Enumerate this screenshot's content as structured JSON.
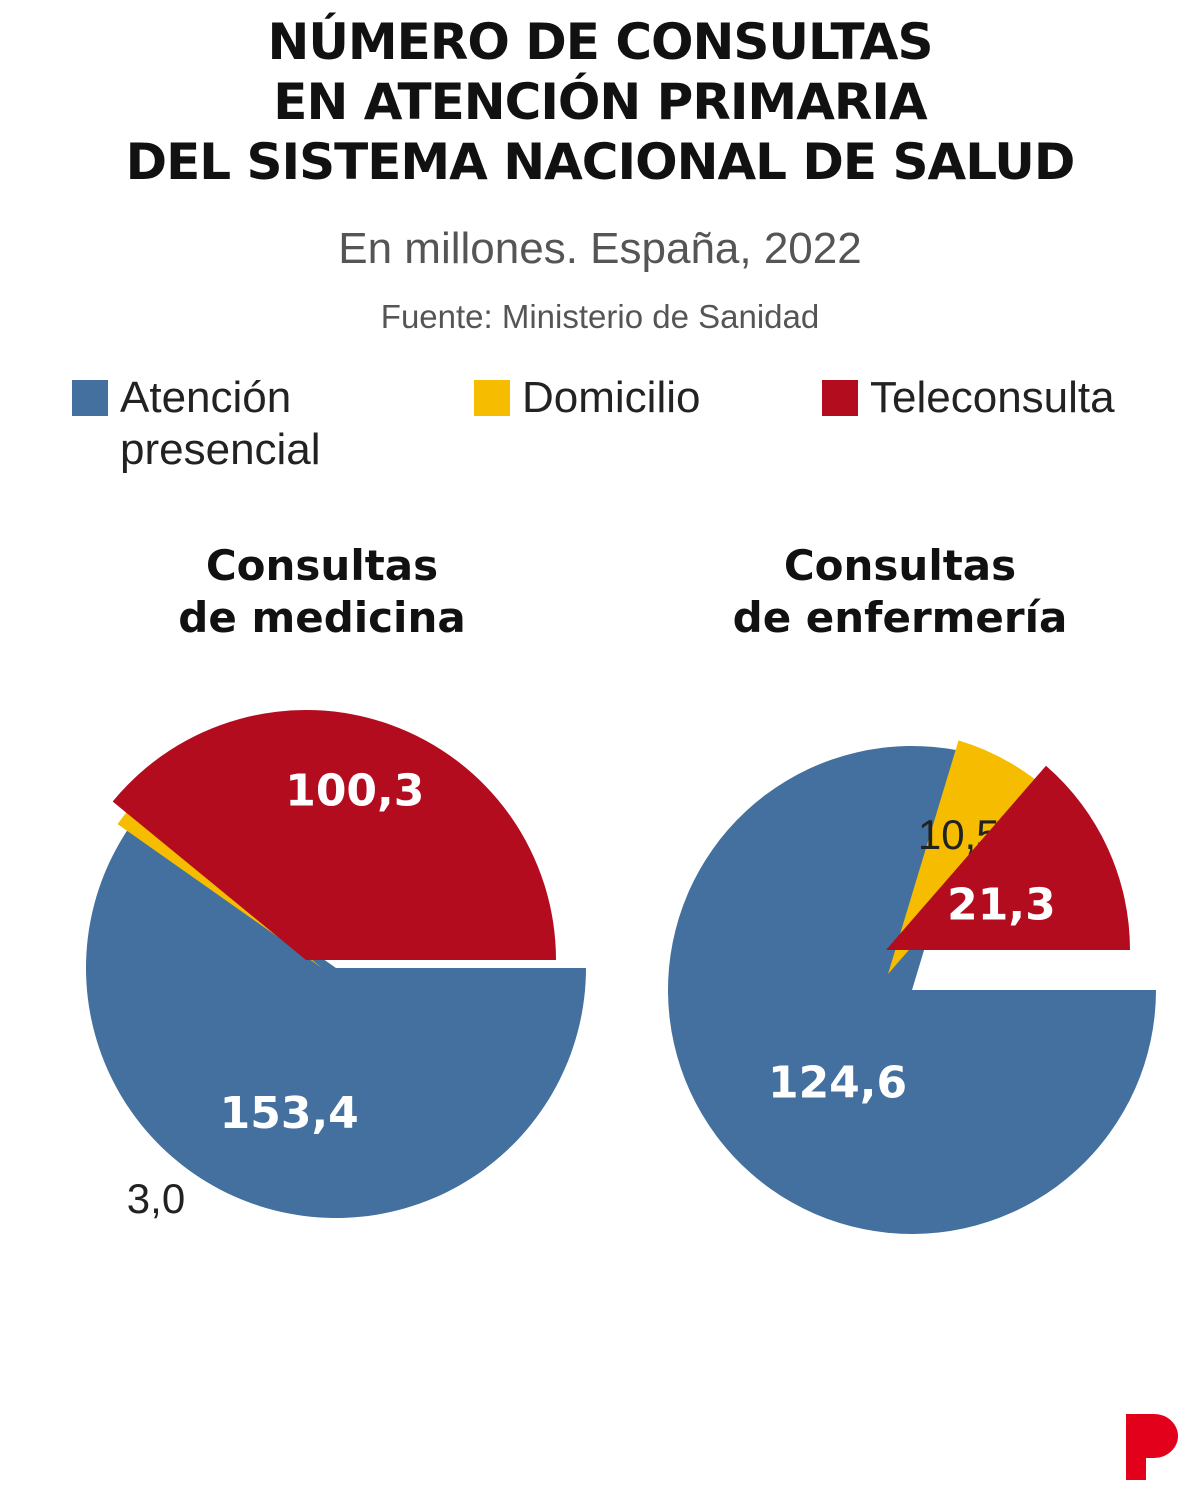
{
  "header": {
    "title_lines": [
      "NÚMERO DE CONSULTAS",
      "EN ATENCIÓN PRIMARIA",
      "DEL SISTEMA NACIONAL DE SALUD"
    ],
    "subtitle": "En millones. España, 2022",
    "source": "Fuente: Ministerio de Sanidad"
  },
  "legend": [
    {
      "lines": [
        "Atención",
        "presencial"
      ],
      "color": "#43709e"
    },
    {
      "lines": [
        "Domicilio"
      ],
      "color": "#f6bd00"
    },
    {
      "lines": [
        "Teleconsulta"
      ],
      "color": "#b40c1f"
    }
  ],
  "chart_data": [
    {
      "type": "pie",
      "title_lines": [
        "Consultas",
        "de medicina"
      ],
      "slices": [
        {
          "category": "Atención presencial",
          "value": 153.4,
          "label": "153,4",
          "color": "#43709e"
        },
        {
          "category": "Domicilio",
          "value": 3.0,
          "label": "3,0",
          "color": "#f6bd00"
        },
        {
          "category": "Teleconsulta",
          "value": 100.3,
          "label": "100,3",
          "color": "#b40c1f"
        }
      ]
    },
    {
      "type": "pie",
      "title_lines": [
        "Consultas",
        "de enfermería"
      ],
      "slices": [
        {
          "category": "Atención presencial",
          "value": 124.6,
          "label": "124,6",
          "color": "#43709e"
        },
        {
          "category": "Domicilio",
          "value": 10.5,
          "label": "10,5",
          "color": "#f6bd00"
        },
        {
          "category": "Teleconsulta",
          "value": 21.3,
          "label": "21,3",
          "color": "#b40c1f"
        }
      ]
    }
  ],
  "logo": {
    "icon": "periodico-p-logo-icon",
    "color": "#e2001a"
  }
}
